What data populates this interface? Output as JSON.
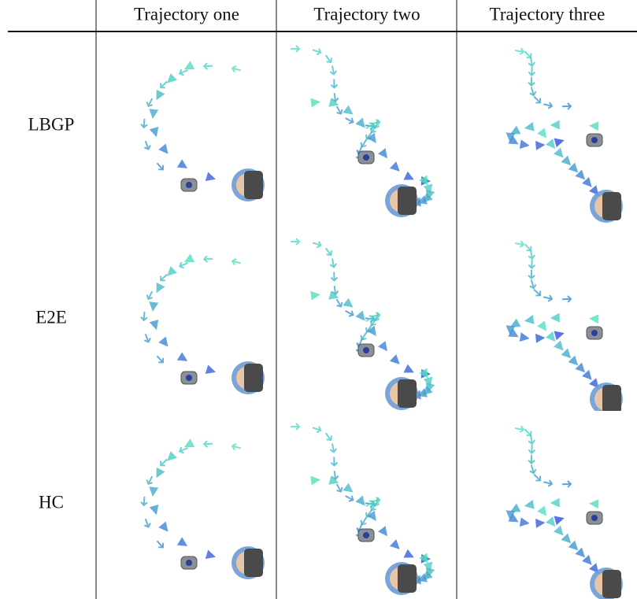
{
  "table": {
    "header": [
      "Trajectory one",
      "Trajectory two",
      "Trajectory three"
    ],
    "rows": [
      "LBGP",
      "E2E",
      "HC"
    ]
  }
}
